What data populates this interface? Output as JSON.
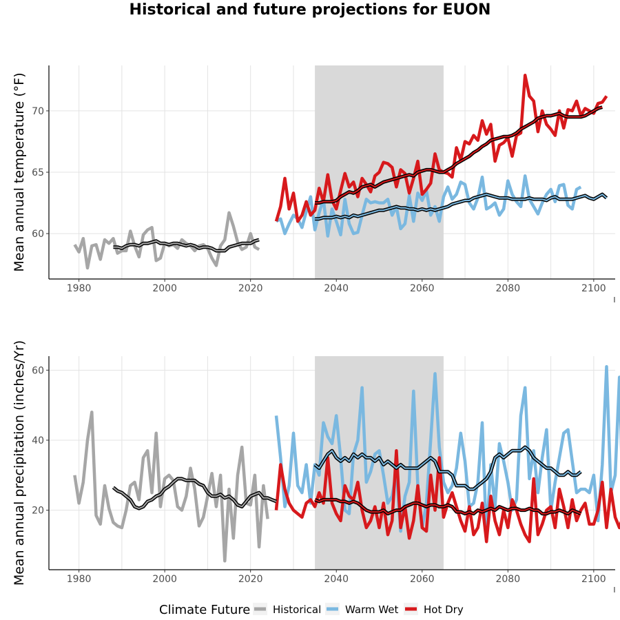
{
  "chart_data": [
    {
      "type": "line",
      "title": "Historical and future projections for EUON",
      "ylabel": "Mean annual temperature (°F)",
      "xlim": [
        1973,
        2105
      ],
      "ylim": [
        56.3,
        73.7
      ],
      "xticks": [
        1980,
        2000,
        2020,
        2040,
        2060,
        2080,
        2100
      ],
      "yticks": [
        60,
        65,
        70
      ],
      "shaded_period": [
        2035,
        2065
      ],
      "grid": true,
      "series": [
        {
          "name": "Historical",
          "color": "#a6a6a6",
          "x_start": 1979,
          "values": [
            59.1,
            58.5,
            59.6,
            57.2,
            59.0,
            59.1,
            57.9,
            59.5,
            59.2,
            59.6,
            58.4,
            58.6,
            58.6,
            60.2,
            59.0,
            58.1,
            59.9,
            60.3,
            60.5,
            57.8,
            58.0,
            59.2,
            59.0,
            59.1,
            58.8,
            59.5,
            59.2,
            59.0,
            58.6,
            59.0,
            59.1,
            58.8,
            58.0,
            57.4,
            59.0,
            59.5,
            61.7,
            60.6,
            59.3,
            58.7,
            58.9,
            60.0,
            58.9,
            58.7
          ]
        },
        {
          "name": "Warm Wet",
          "color": "#7ab8e0",
          "x_start": 2026,
          "values": [
            61.0,
            61.2,
            60.0,
            60.8,
            61.5,
            61.2,
            60.5,
            61.8,
            63.0,
            60.3,
            61.7,
            62.8,
            59.8,
            62.0,
            61.0,
            59.9,
            62.8,
            60.8,
            60.0,
            60.1,
            61.5,
            62.8,
            62.5,
            62.6,
            62.5,
            62.5,
            62.8,
            61.5,
            62.2,
            60.4,
            60.8,
            63.1,
            61.0,
            63.3,
            62.7,
            63.5,
            61.5,
            62.2,
            61.0,
            63.0,
            63.8,
            62.8,
            63.2,
            64.2,
            64.0,
            62.5,
            62.0,
            62.9,
            64.6,
            62.0,
            62.2,
            62.5,
            61.5,
            62.0,
            64.3,
            63.2,
            62.6,
            62.2,
            64.7,
            62.8,
            62.2,
            61.6,
            62.5,
            63.2,
            63.6,
            62.6,
            63.9,
            64.0,
            62.3,
            62.0,
            63.6,
            63.8
          ]
        },
        {
          "name": "Hot Dry",
          "color": "#d7191c",
          "x_start": 2026,
          "values": [
            61.0,
            62.2,
            64.5,
            62.0,
            63.3,
            61.0,
            61.5,
            62.6,
            61.5,
            61.9,
            63.7,
            62.6,
            64.8,
            62.7,
            62.0,
            63.5,
            64.9,
            63.8,
            64.2,
            63.0,
            64.5,
            64.0,
            63.4,
            64.7,
            65.0,
            65.8,
            65.7,
            65.4,
            63.8,
            65.2,
            64.9,
            63.3,
            64.5,
            65.9,
            63.2,
            63.6,
            64.1,
            66.5,
            65.2,
            65.0,
            64.9,
            64.6,
            67.0,
            66.0,
            67.5,
            67.3,
            68.0,
            67.6,
            69.2,
            68.1,
            68.9,
            65.9,
            67.2,
            67.4,
            67.8,
            66.3,
            68.0,
            68.2,
            72.9,
            71.2,
            70.8,
            68.3,
            70.0,
            68.9,
            68.5,
            68.0,
            70.0,
            68.6,
            70.1,
            70.0,
            70.8,
            69.6,
            70.2,
            70.0,
            69.8,
            70.6,
            70.7,
            71.2
          ]
        }
      ],
      "moving_average": [
        {
          "of": "Historical",
          "x_start": 1988,
          "values": [
            58.9,
            58.9,
            58.8,
            59.0,
            59.1,
            59.1,
            59.0,
            59.2,
            59.2,
            59.3,
            59.4,
            59.2,
            59.2,
            59.1,
            59.2,
            59.2,
            59.1,
            59.0,
            59.1,
            59.0,
            58.8,
            58.9,
            58.9,
            58.8,
            58.6,
            58.6,
            58.6,
            58.9,
            59.0,
            59.1,
            59.2,
            59.2,
            59.2,
            59.4,
            59.5
          ]
        },
        {
          "of": "Warm Wet",
          "x_start": 2035,
          "values": [
            61.2,
            61.2,
            61.3,
            61.3,
            61.3,
            61.4,
            61.3,
            61.4,
            61.3,
            61.5,
            61.4,
            61.5,
            61.6,
            61.7,
            61.8,
            61.9,
            61.9,
            62.0,
            62.1,
            62.2,
            62.1,
            62.1,
            62.0,
            62.0,
            61.9,
            62.0,
            61.9,
            62.0,
            61.9,
            62.0,
            62.1,
            62.2,
            62.4,
            62.5,
            62.6,
            62.7,
            62.7,
            62.9,
            63.0,
            63.1,
            63.2,
            63.1,
            63.0,
            62.9,
            62.9,
            62.9,
            62.8,
            62.8,
            62.8,
            62.8,
            62.9,
            62.8,
            62.8,
            62.8,
            62.7,
            62.9,
            63.0,
            62.8,
            62.8,
            62.8,
            62.8,
            62.9,
            63.0,
            63.1,
            62.9,
            62.8,
            63.0,
            63.2,
            62.9
          ]
        },
        {
          "of": "Hot Dry",
          "x_start": 2035,
          "values": [
            62.5,
            62.5,
            62.6,
            62.6,
            62.6,
            62.7,
            63.0,
            63.2,
            63.4,
            63.3,
            63.5,
            63.8,
            63.9,
            64.0,
            63.8,
            64.0,
            64.2,
            64.3,
            64.4,
            64.5,
            64.6,
            64.7,
            64.8,
            64.7,
            65.0,
            65.1,
            65.2,
            65.2,
            65.1,
            65.0,
            65.0,
            65.2,
            65.4,
            65.7,
            65.9,
            66.1,
            66.3,
            66.6,
            66.8,
            67.1,
            67.3,
            67.6,
            67.7,
            67.8,
            67.9,
            67.9,
            68.0,
            68.2,
            68.5,
            68.7,
            68.9,
            69.1,
            69.4,
            69.5,
            69.6,
            69.6,
            69.7,
            69.8,
            69.6,
            69.5,
            69.5,
            69.5,
            69.5,
            69.6,
            69.8,
            70.0,
            70.2,
            70.3
          ]
        }
      ]
    },
    {
      "type": "line",
      "ylabel": "Mean annual precipitation (inches/Yr)",
      "xlim": [
        1973,
        2105
      ],
      "ylim": [
        3,
        64
      ],
      "xticks": [
        1980,
        2000,
        2020,
        2040,
        2060,
        2080,
        2100
      ],
      "yticks": [
        20,
        40,
        60
      ],
      "shaded_period": [
        2035,
        2065
      ],
      "grid": true,
      "series": [
        {
          "name": "Historical",
          "color": "#a6a6a6",
          "x_start": 1979,
          "values": [
            30.0,
            22.0,
            28.0,
            40.0,
            48.0,
            18.5,
            16.0,
            27.0,
            20.5,
            16.5,
            15.5,
            15.0,
            20.0,
            27.0,
            28.0,
            23.0,
            35.0,
            37.0,
            25.0,
            42.0,
            21.0,
            29.0,
            30.0,
            28.5,
            21.0,
            20.0,
            24.0,
            32.0,
            26.0,
            15.5,
            18.0,
            24.0,
            30.5,
            21.0,
            30.0,
            5.5,
            26.0,
            12.0,
            30.0,
            38.0,
            22.0,
            21.5,
            30.0,
            9.5,
            27.0,
            17.5
          ]
        },
        {
          "name": "Warm Wet",
          "color": "#7ab8e0",
          "x_start": 2026,
          "values": [
            47,
            35,
            21,
            27,
            42,
            27,
            25,
            33,
            22,
            33,
            30,
            45,
            41,
            39,
            47,
            35,
            20,
            19,
            36,
            40,
            55,
            28,
            31,
            36,
            37,
            30,
            22,
            24,
            31,
            14,
            24,
            28,
            54,
            27,
            15,
            22,
            40,
            59,
            38,
            28,
            25,
            27,
            32,
            42,
            34,
            21,
            22,
            28,
            45,
            12,
            33,
            21,
            39,
            34,
            28,
            20,
            23,
            47,
            55,
            29,
            37,
            25,
            35,
            43,
            20,
            28,
            35,
            42,
            43,
            34,
            25,
            26,
            26,
            25,
            30,
            17,
            33,
            61,
            25,
            30,
            58,
            14
          ]
        },
        {
          "name": "Hot Dry",
          "color": "#d7191c",
          "x_start": 2026,
          "values": [
            20,
            33,
            26,
            22,
            20,
            19,
            18,
            22,
            23,
            21,
            25,
            22,
            35,
            22,
            19,
            17,
            27,
            24,
            23,
            28,
            20,
            15,
            17,
            21,
            15,
            22,
            13,
            17,
            37,
            15,
            21,
            12,
            17,
            27,
            15,
            14,
            30,
            20,
            35,
            18,
            22,
            25,
            21,
            17,
            14,
            21,
            13,
            15,
            22,
            11,
            24,
            17,
            13,
            20,
            15,
            23,
            20,
            16,
            13,
            11,
            29,
            13,
            16,
            20,
            21,
            15,
            26,
            21,
            15,
            23,
            17,
            20,
            22,
            16,
            16,
            20,
            28,
            15,
            26,
            18,
            15,
            19
          ]
        }
      ],
      "moving_average": [
        {
          "of": "Historical",
          "x_start": 1988,
          "values": [
            26.5,
            25.5,
            25.0,
            24.0,
            23.0,
            21.0,
            20.5,
            21.0,
            22.5,
            23.0,
            24.0,
            24.5,
            26.0,
            26.8,
            28.0,
            29.0,
            29.0,
            28.5,
            28.5,
            28.5,
            27.5,
            27.0,
            25.0,
            24.0,
            24.0,
            24.5,
            23.5,
            24.0,
            23.0,
            21.5,
            21.0,
            22.5,
            24.0,
            24.5,
            25.0,
            23.5,
            23.5,
            23.0,
            22.5
          ]
        },
        {
          "of": "Warm Wet",
          "x_start": 2035,
          "values": [
            33,
            32,
            34,
            36,
            37,
            35,
            34,
            35,
            34,
            36,
            35,
            36,
            35,
            35,
            34,
            35,
            33,
            34,
            33,
            32,
            33,
            32,
            32,
            32,
            32,
            33,
            34,
            35,
            34,
            31,
            31,
            31,
            30,
            27,
            27,
            27,
            26,
            26,
            27,
            28,
            29,
            31,
            35,
            36,
            35,
            36,
            37,
            37,
            37,
            38,
            37,
            35,
            34,
            33,
            32,
            32,
            31,
            30,
            30,
            31,
            30,
            30,
            31
          ]
        },
        {
          "of": "Hot Dry",
          "x_start": 2035,
          "values": [
            23,
            22.5,
            23,
            23,
            23,
            23,
            22.5,
            22.5,
            22,
            22.5,
            22,
            21,
            20,
            19.5,
            19.5,
            19.5,
            20,
            19,
            19.5,
            20,
            20,
            21,
            21.5,
            22,
            22,
            21.5,
            21,
            21.5,
            21.5,
            21,
            21,
            21.5,
            21,
            19.5,
            19.5,
            19,
            19.5,
            19,
            20,
            19.5,
            20,
            20.5,
            20,
            21,
            20.5,
            20,
            20.5,
            20.5,
            20,
            20,
            20.5,
            20,
            20,
            19,
            19,
            19.5,
            19.5,
            20,
            19.5,
            19,
            20,
            19.5,
            19
          ]
        }
      ]
    }
  ],
  "legend": {
    "title": "Climate Future",
    "items": [
      {
        "label": "Historical",
        "color": "#a6a6a6"
      },
      {
        "label": "Warm Wet",
        "color": "#7ab8e0"
      },
      {
        "label": "Hot Dry",
        "color": "#d7191c"
      }
    ]
  },
  "corner_mark": "ı"
}
